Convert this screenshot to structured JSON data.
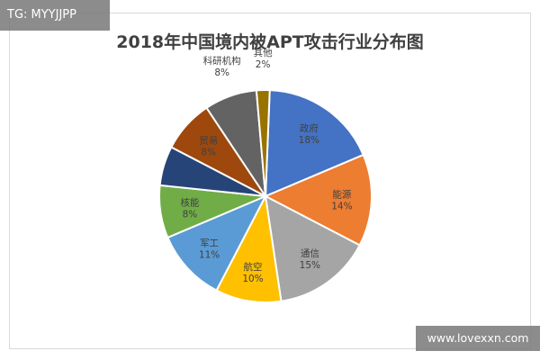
{
  "watermark_top": "TG: MYYJJPP",
  "watermark_bottom": "www.lovexxn.com",
  "chart_data": {
    "type": "pie",
    "title": "2018年中国境内被APT攻击行业分布图",
    "slices": [
      {
        "name": "政府",
        "value": 18,
        "label": "18%",
        "color": "#4472C4"
      },
      {
        "name": "能源",
        "value": 14,
        "label": "14%",
        "color": "#ED7D31"
      },
      {
        "name": "通信",
        "value": 15,
        "label": "15%",
        "color": "#A5A5A5"
      },
      {
        "name": "航空",
        "value": 10,
        "label": "10%",
        "color": "#FFC000"
      },
      {
        "name": "军工",
        "value": 11,
        "label": "11%",
        "color": "#5B9BD5"
      },
      {
        "name": "核能",
        "value": 8,
        "label": "8%",
        "color": "#70AD47"
      },
      {
        "name": "",
        "value": 6,
        "label": "",
        "color": "#264478"
      },
      {
        "name": "贸易",
        "value": 8,
        "label": "8%",
        "color": "#9E480E"
      },
      {
        "name": "科研机构",
        "value": 8,
        "label": "8%",
        "color": "#636363"
      },
      {
        "name": "其他",
        "value": 2,
        "label": "2%",
        "color": "#997300"
      }
    ]
  }
}
